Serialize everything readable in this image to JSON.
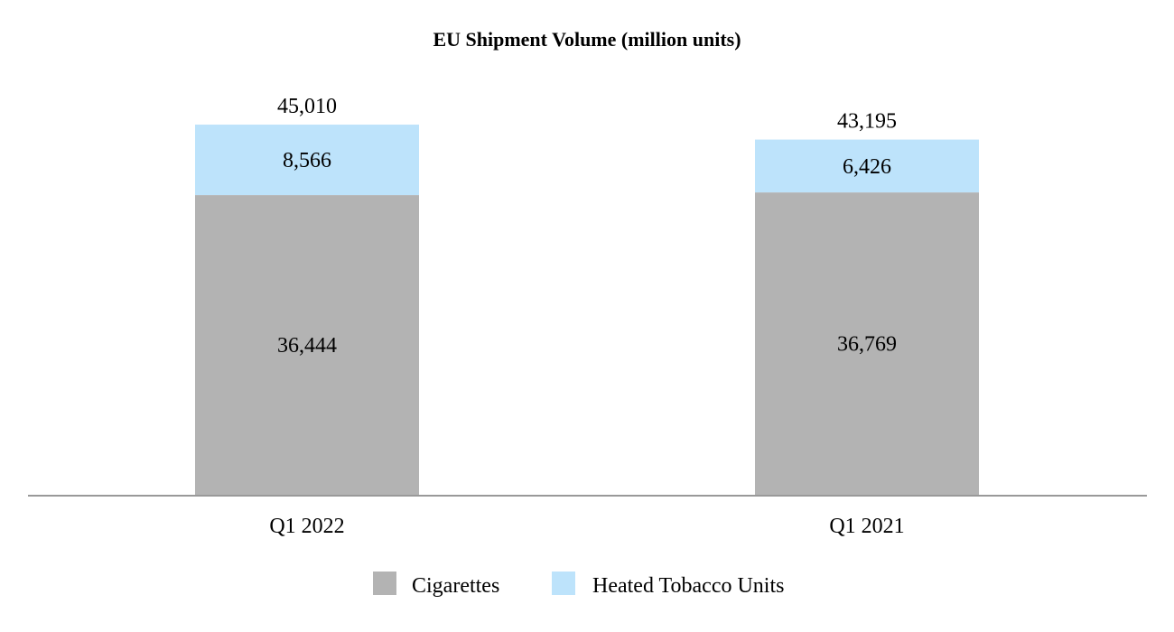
{
  "chart_data": {
    "type": "bar",
    "stacked": true,
    "title": "EU Shipment Volume (million units)",
    "categories": [
      "Q1 2022",
      "Q1 2021"
    ],
    "series": [
      {
        "name": "Cigarettes",
        "values": [
          36444,
          36769
        ],
        "labels": [
          "36,444",
          "36,769"
        ],
        "color": "#b3b3b3"
      },
      {
        "name": "Heated Tobacco Units",
        "values": [
          8566,
          6426
        ],
        "labels": [
          "8,566",
          "6,426"
        ],
        "color": "#bde3fb"
      }
    ],
    "totals": [
      45010,
      43195
    ],
    "total_labels": [
      "45,010",
      "43,195"
    ],
    "ylim": [
      0,
      48000
    ],
    "grid": false,
    "legend_position": "bottom-center",
    "axis_color": "#999999"
  }
}
